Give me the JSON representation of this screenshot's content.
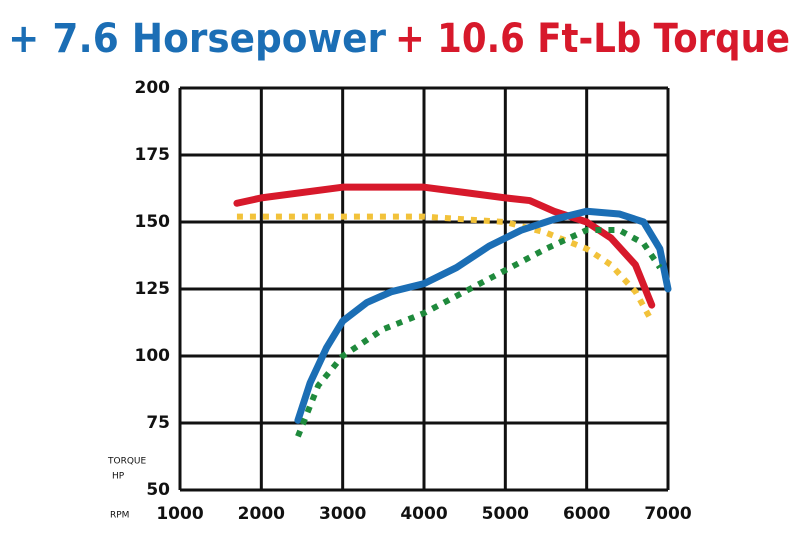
{
  "chart_data": {
    "type": "line",
    "title_parts": [
      "+ 7.6 Horsepower",
      "+ 10.6 Ft-Lb Torque"
    ],
    "y_labels": [
      "TORQUE",
      "HP"
    ],
    "x_label": "RPM",
    "xlim": [
      1000,
      7000
    ],
    "xticks": [
      1000,
      2000,
      3000,
      4000,
      5000,
      6000,
      7000
    ],
    "ylim": [
      50,
      200
    ],
    "yticks": [
      50,
      75,
      100,
      125,
      150,
      175,
      200
    ],
    "grid": true,
    "series": [
      {
        "color": "#d7192b",
        "dashed": false,
        "x": [
          1700,
          2000,
          3000,
          4000,
          4500,
          5000,
          5300,
          5600,
          6000,
          6300,
          6600,
          6800
        ],
        "values": [
          157,
          159,
          163,
          163,
          161,
          159,
          158,
          154,
          150,
          144,
          134,
          119
        ]
      },
      {
        "color": "#f2c23a",
        "dashed": true,
        "x": [
          1700,
          3000,
          4000,
          5000,
          5500,
          6000,
          6300,
          6600,
          6800
        ],
        "values": [
          152,
          152,
          152,
          150,
          146,
          140,
          134,
          124,
          113
        ]
      },
      {
        "color": "#1b6eb5",
        "dashed": false,
        "x": [
          2450,
          2600,
          2800,
          3000,
          3300,
          3600,
          4000,
          4400,
          4800,
          5200,
          5600,
          6000,
          6400,
          6700,
          6900,
          7000
        ],
        "values": [
          76,
          90,
          103,
          113,
          120,
          124,
          127,
          133,
          141,
          147,
          151,
          154,
          153,
          150,
          140,
          125
        ]
      },
      {
        "color": "#1f8a3c",
        "dashed": true,
        "x": [
          2450,
          2700,
          3000,
          3500,
          4000,
          4500,
          5000,
          5500,
          6000,
          6400,
          6700,
          6900
        ],
        "values": [
          70,
          89,
          100,
          110,
          116,
          124,
          132,
          140,
          147,
          147,
          142,
          133
        ]
      }
    ]
  }
}
